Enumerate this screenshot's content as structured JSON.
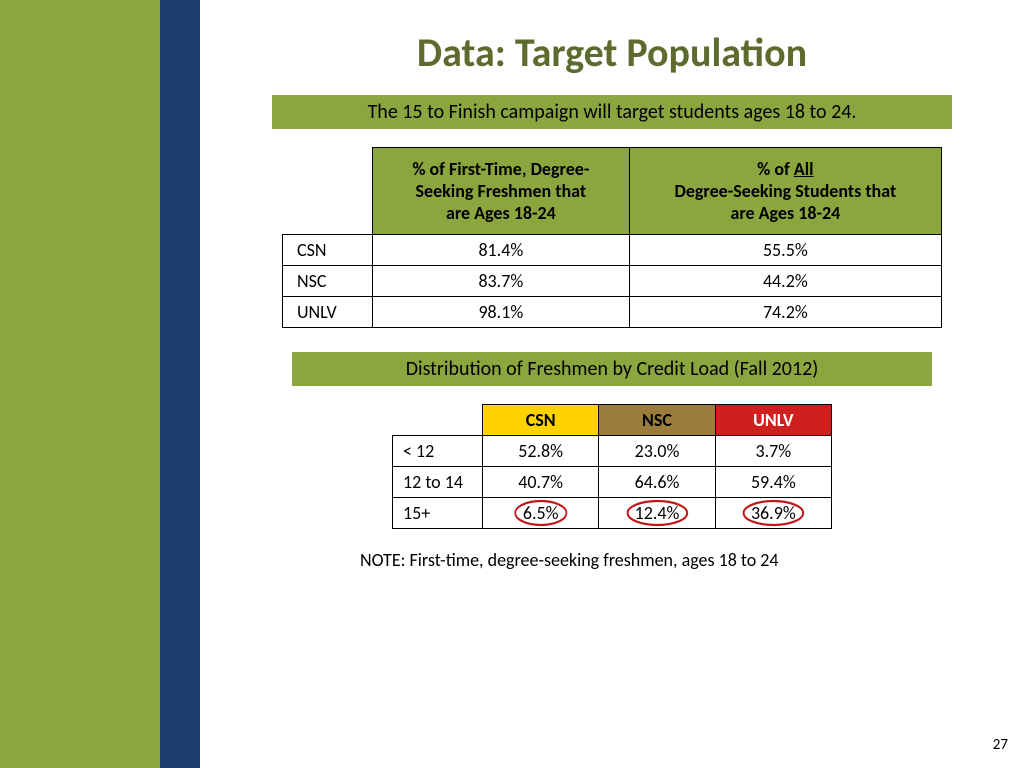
{
  "title": "Data:  Target Population",
  "banner1": "The 15 to Finish campaign will target students ages 18 to 24.",
  "banner2": "Distribution of Freshmen by Credit Load (Fall 2012)",
  "colors": {
    "olive_stripe": "#8ba53f",
    "blue_stripe": "#1f3d70",
    "banner_bg": "#8ba53f",
    "title_color": "#5e6b2f",
    "csn_header_bg": "#ffd200",
    "csn_header_fg": "#000000",
    "nsc_header_bg": "#9b7c3d",
    "nsc_header_fg": "#000000",
    "unlv_header_bg": "#d01f1f",
    "unlv_header_fg": "#ffffff",
    "circle_stroke": "#c0171a"
  },
  "table1": {
    "headers": {
      "col1_line1": "% of First-Time, Degree-",
      "col1_line2": "Seeking Freshmen that",
      "col1_line3": "are Ages 18-24",
      "col2_line1_a": "% of ",
      "col2_line1_b": "All",
      "col2_line2": "Degree-Seeking Students that",
      "col2_line3": "are Ages 18-24"
    },
    "rows": [
      {
        "label": "CSN",
        "v1": "81.4%",
        "v2": "55.5%"
      },
      {
        "label": "NSC",
        "v1": "83.7%",
        "v2": "44.2%"
      },
      {
        "label": "UNLV",
        "v1": "98.1%",
        "v2": "74.2%"
      }
    ]
  },
  "table2": {
    "headers": {
      "csn": "CSN",
      "nsc": "NSC",
      "unlv": "UNLV"
    },
    "rows": [
      {
        "label": "< 12",
        "csn": "52.8%",
        "nsc": "23.0%",
        "unlv": "3.7%",
        "circled": false
      },
      {
        "label": "12 to 14",
        "csn": "40.7%",
        "nsc": "64.6%",
        "unlv": "59.4%",
        "circled": false
      },
      {
        "label": "15+",
        "csn": "6.5%",
        "nsc": "12.4%",
        "unlv": "36.9%",
        "circled": true
      }
    ]
  },
  "note": "NOTE:  First-time, degree-seeking freshmen, ages 18 to 24",
  "page_number": "27"
}
